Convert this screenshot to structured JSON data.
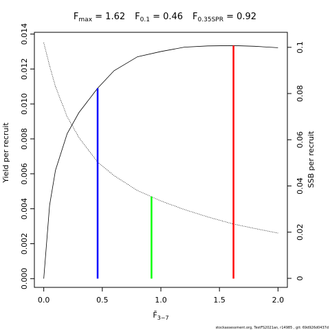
{
  "chart_data": {
    "type": "line",
    "title_parts": [
      {
        "main": "F",
        "sub": "max",
        "rest": " = 1.62"
      },
      {
        "main": "F",
        "sub": "0.1",
        "rest": " = 0.46"
      },
      {
        "main": "F",
        "sub": "0.35SPR",
        "rest": " = 0.92"
      }
    ],
    "x_label": {
      "main": "F̄",
      "sub": "3−7"
    },
    "y_label": "Yield per recruit",
    "y2_label": "SSB per recruit",
    "footer": "stockassessment.org, TestFS2021an, r14985 , git: 69d926d0437d",
    "x": [
      0,
      0.05,
      0.1,
      0.2,
      0.3,
      0.46,
      0.6,
      0.8,
      1.0,
      1.2,
      1.4,
      1.62,
      1.8,
      2.0
    ],
    "series": [
      {
        "name": "Yield per recruit",
        "color": "#000000",
        "dash": "solid",
        "values": [
          0,
          0.0042,
          0.0062,
          0.0083,
          0.0095,
          0.0109,
          0.0119,
          0.0127,
          0.013,
          0.01325,
          0.01332,
          0.01334,
          0.0133,
          0.01322
        ]
      },
      {
        "name": "SSB per recruit",
        "color": "#000000",
        "dash": "dotted",
        "axis": "y2",
        "values": [
          0.102,
          0.092,
          0.083,
          0.07,
          0.061,
          0.0503,
          0.0445,
          0.038,
          0.0335,
          0.0298,
          0.0266,
          0.0235,
          0.0216,
          0.0196
        ]
      }
    ],
    "reference_lines": [
      {
        "x": 0.46,
        "y": 0.0109,
        "color": "#0000ff"
      },
      {
        "x": 0.92,
        "y": 0.0354,
        "axis": "y2",
        "color": "#00ff00"
      },
      {
        "x": 1.62,
        "y": 0.01334,
        "color": "#ff0000"
      }
    ],
    "xlim": [
      -0.08,
      2.08
    ],
    "xticks": [
      {
        "value": 0,
        "label": "0.0"
      },
      {
        "value": 0.5,
        "label": "0.5"
      },
      {
        "value": 1,
        "label": "1.0"
      },
      {
        "value": 1.5,
        "label": "1.5"
      },
      {
        "value": 2,
        "label": "2.0"
      }
    ],
    "ylim": [
      -0.0005,
      0.0141
    ],
    "yticks": [
      {
        "value": 0,
        "label": "0.000"
      },
      {
        "value": 0.002,
        "label": "0.002"
      },
      {
        "value": 0.004,
        "label": "0.004"
      },
      {
        "value": 0.006,
        "label": "0.006"
      },
      {
        "value": 0.008,
        "label": "0.008"
      },
      {
        "value": 0.01,
        "label": "0.010"
      },
      {
        "value": 0.012,
        "label": "0.012"
      },
      {
        "value": 0.014,
        "label": "0.014"
      }
    ],
    "y2lim": [
      -0.0039,
      0.1065
    ],
    "y2ticks": [
      0,
      0.02,
      0.04,
      0.06,
      0.08,
      0.1
    ]
  }
}
